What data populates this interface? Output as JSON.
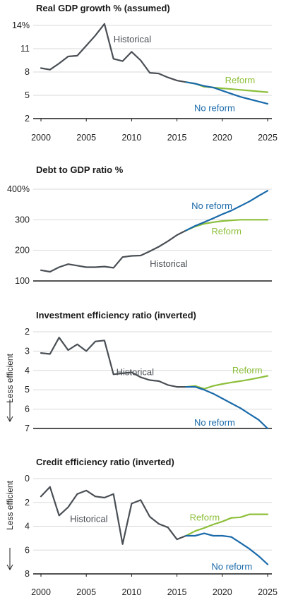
{
  "colors": {
    "historical": "#4a4f55",
    "reform": "#8dbf3a",
    "no_reform": "#1a6aaa",
    "axis": "#1a1a1a",
    "grid": "#d9d9d9"
  },
  "chart_data": [
    {
      "type": "line",
      "title": "Real GDP growth % (assumed)",
      "ylim": [
        2,
        14
      ],
      "yticks": [
        2,
        5,
        8,
        11,
        14
      ],
      "ytick_labels": [
        "2",
        "5",
        "8",
        "11",
        "14%"
      ],
      "xlim": [
        2000,
        2025
      ],
      "xticks": [
        2000,
        2005,
        2010,
        2015,
        2020,
        2025
      ],
      "xtick_labels": [
        "2000",
        "2005",
        "2010",
        "2015",
        "2020",
        "2025"
      ],
      "inverted": false,
      "series": [
        {
          "name": "Historical",
          "color_key": "historical",
          "x": [
            2000,
            2001,
            2002,
            2003,
            2004,
            2005,
            2006,
            2007,
            2008,
            2009,
            2010,
            2011,
            2012,
            2013,
            2014,
            2015,
            2016
          ],
          "y": [
            8.5,
            8.3,
            9.1,
            10.0,
            10.1,
            11.4,
            12.7,
            14.2,
            9.7,
            9.4,
            10.6,
            9.5,
            7.9,
            7.8,
            7.3,
            6.9,
            6.7
          ]
        },
        {
          "name": "Reform",
          "color_key": "reform",
          "x": [
            2016,
            2017,
            2018,
            2019,
            2020,
            2021,
            2022,
            2023,
            2024,
            2025
          ],
          "y": [
            6.7,
            6.5,
            6.1,
            6.0,
            5.9,
            5.8,
            5.7,
            5.6,
            5.5,
            5.4
          ]
        },
        {
          "name": "No reform",
          "color_key": "no_reform",
          "x": [
            2016,
            2017,
            2018,
            2019,
            2020,
            2021,
            2022,
            2023,
            2024,
            2025
          ],
          "y": [
            6.7,
            6.5,
            6.2,
            6.0,
            5.6,
            5.2,
            4.8,
            4.5,
            4.2,
            3.9
          ]
        }
      ],
      "annotations": [
        {
          "text": "Historical",
          "color_key": "historical",
          "x": 2008.0,
          "y": 12.2
        },
        {
          "text": "Reform",
          "color_key": "reform",
          "x": 2020.3,
          "y": 6.9
        },
        {
          "text": "No reform",
          "color_key": "no_reform",
          "x": 2016.9,
          "y": 3.3
        }
      ]
    },
    {
      "type": "line",
      "title": "Debt to GDP ratio %",
      "ylim": [
        100,
        400
      ],
      "yticks": [
        100,
        200,
        300,
        400
      ],
      "ytick_labels": [
        "100",
        "200",
        "300",
        "400%"
      ],
      "xlim": [
        2000,
        2025
      ],
      "inverted": false,
      "series": [
        {
          "name": "Historical",
          "color_key": "historical",
          "x": [
            2000,
            2001,
            2002,
            2003,
            2004,
            2005,
            2006,
            2007,
            2008,
            2009,
            2010,
            2011,
            2012,
            2013,
            2014,
            2015,
            2016
          ],
          "y": [
            135,
            130,
            145,
            155,
            150,
            145,
            145,
            147,
            143,
            178,
            182,
            183,
            197,
            212,
            230,
            250,
            265
          ]
        },
        {
          "name": "Reform",
          "color_key": "reform",
          "x": [
            2016,
            2017,
            2018,
            2019,
            2020,
            2021,
            2022,
            2023,
            2024,
            2025
          ],
          "y": [
            265,
            278,
            287,
            292,
            296,
            298,
            300,
            300,
            300,
            300
          ]
        },
        {
          "name": "No reform",
          "color_key": "no_reform",
          "x": [
            2016,
            2017,
            2018,
            2019,
            2020,
            2021,
            2022,
            2023,
            2024,
            2025
          ],
          "y": [
            265,
            280,
            292,
            305,
            318,
            330,
            345,
            360,
            378,
            395
          ]
        }
      ],
      "annotations": [
        {
          "text": "No reform",
          "color_key": "no_reform",
          "x": 2016.6,
          "y": 345
        },
        {
          "text": "Reform",
          "color_key": "reform",
          "x": 2018.8,
          "y": 262
        },
        {
          "text": "Historical",
          "color_key": "historical",
          "x": 2012.0,
          "y": 155
        }
      ]
    },
    {
      "type": "line",
      "title": "Investment efficiency ratio (inverted)",
      "side_label": "Less efficient",
      "ylim": [
        2,
        7
      ],
      "yticks": [
        2,
        3,
        4,
        5,
        6,
        7
      ],
      "ytick_labels": [
        "2",
        "3",
        "4",
        "5",
        "6",
        "7"
      ],
      "xlim": [
        2000,
        2025
      ],
      "inverted": true,
      "series": [
        {
          "name": "Historical",
          "color_key": "historical",
          "x": [
            2000,
            2001,
            2002,
            2003,
            2004,
            2005,
            2006,
            2007,
            2008,
            2009,
            2010,
            2011,
            2012,
            2013,
            2014,
            2015,
            2016
          ],
          "y": [
            3.1,
            3.15,
            2.3,
            2.95,
            2.65,
            3.0,
            2.5,
            2.45,
            4.2,
            4.15,
            4.1,
            4.35,
            4.5,
            4.55,
            4.75,
            4.85,
            4.85
          ]
        },
        {
          "name": "Reform",
          "color_key": "reform",
          "x": [
            2016,
            2017,
            2018,
            2019,
            2020,
            2021,
            2022,
            2023,
            2024,
            2025
          ],
          "y": [
            4.85,
            4.8,
            4.95,
            4.8,
            4.7,
            4.62,
            4.55,
            4.47,
            4.38,
            4.28
          ]
        },
        {
          "name": "No reform",
          "color_key": "no_reform",
          "x": [
            2016,
            2017,
            2018,
            2019,
            2020,
            2021,
            2022,
            2023,
            2024,
            2025
          ],
          "y": [
            4.85,
            4.85,
            5.0,
            5.2,
            5.45,
            5.7,
            5.95,
            6.25,
            6.55,
            7.0
          ]
        }
      ],
      "annotations": [
        {
          "text": "Historical",
          "color_key": "historical",
          "x": 2008.3,
          "y": 4.1
        },
        {
          "text": "Reform",
          "color_key": "reform",
          "x": 2021.1,
          "y": 4.0
        },
        {
          "text": "No reform",
          "color_key": "no_reform",
          "x": 2016.9,
          "y": 6.7
        }
      ]
    },
    {
      "type": "line",
      "title": "Credit efficiency ratio (inverted)",
      "side_label": "Less efficient",
      "ylim": [
        0,
        8
      ],
      "yticks": [
        0,
        2,
        4,
        6,
        8
      ],
      "ytick_labels": [
        "0",
        "2",
        "4",
        "6",
        "8"
      ],
      "xlim": [
        2000,
        2025
      ],
      "xticks": [
        2000,
        2005,
        2010,
        2015,
        2020,
        2025
      ],
      "xtick_labels": [
        "2000",
        "2005",
        "2010",
        "2015",
        "2020",
        "2025"
      ],
      "inverted": true,
      "series": [
        {
          "name": "Historical",
          "color_key": "historical",
          "x": [
            2000,
            2001,
            2002,
            2003,
            2004,
            2005,
            2006,
            2007,
            2008,
            2009,
            2010,
            2011,
            2012,
            2013,
            2014,
            2015,
            2016
          ],
          "y": [
            1.5,
            0.7,
            3.1,
            2.4,
            1.3,
            1.0,
            1.5,
            1.6,
            1.3,
            5.5,
            2.1,
            1.8,
            3.2,
            3.8,
            4.1,
            5.1,
            4.8
          ]
        },
        {
          "name": "Reform",
          "color_key": "reform",
          "x": [
            2016,
            2017,
            2018,
            2019,
            2020,
            2021,
            2022,
            2023,
            2024,
            2025
          ],
          "y": [
            4.8,
            4.4,
            4.15,
            3.85,
            3.6,
            3.3,
            3.25,
            3.0,
            3.0,
            3.0
          ]
        },
        {
          "name": "No reform",
          "color_key": "no_reform",
          "x": [
            2016,
            2017,
            2018,
            2019,
            2020,
            2021,
            2022,
            2023,
            2024,
            2025
          ],
          "y": [
            4.8,
            4.8,
            4.6,
            4.8,
            4.8,
            4.9,
            5.4,
            5.9,
            6.5,
            7.2
          ]
        }
      ],
      "annotations": [
        {
          "text": "Historical",
          "color_key": "historical",
          "x": 2003.2,
          "y": 3.4
        },
        {
          "text": "Reform",
          "color_key": "reform",
          "x": 2016.4,
          "y": 3.3
        },
        {
          "text": "No reform",
          "color_key": "no_reform",
          "x": 2018.8,
          "y": 7.4
        }
      ]
    }
  ]
}
